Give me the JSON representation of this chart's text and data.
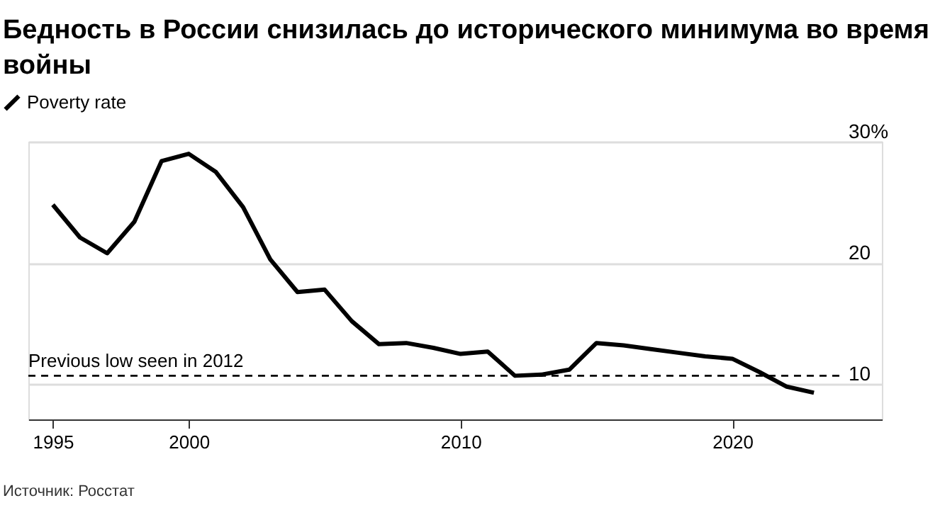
{
  "chart_data": {
    "type": "line",
    "title": "Бедность в России снизилась до исторического минимума во время войны",
    "x": [
      1995,
      1996,
      1997,
      1998,
      1999,
      2000,
      2001,
      2002,
      2003,
      2004,
      2005,
      2006,
      2007,
      2008,
      2009,
      2010,
      2011,
      2012,
      2013,
      2014,
      2015,
      2016,
      2017,
      2018,
      2019,
      2020,
      2021,
      2022,
      2023
    ],
    "series": [
      {
        "name": "Poverty rate",
        "color": "#000000",
        "values": [
          24.8,
          22.1,
          20.8,
          23.4,
          28.4,
          29.0,
          27.5,
          24.6,
          20.3,
          17.6,
          17.8,
          15.2,
          13.3,
          13.4,
          13.0,
          12.5,
          12.7,
          10.7,
          10.8,
          11.2,
          13.4,
          13.2,
          12.9,
          12.6,
          12.3,
          12.1,
          11.0,
          9.8,
          9.3
        ]
      }
    ],
    "xlim": [
      1994.1,
      2025.5
    ],
    "xticks": [
      1995,
      2000,
      2010,
      2020
    ],
    "ylim": [
      7.1,
      30
    ],
    "yticks": [
      {
        "value": 30,
        "label": "30%"
      },
      20,
      10
    ],
    "ref_lines": [
      {
        "axis": "y",
        "value": 10.7,
        "label": "Previous low seen in 2012",
        "color": "#000000",
        "line_style": "dashed"
      }
    ],
    "annotations": [
      "Источник: Росстат"
    ],
    "grid": "y",
    "legend": "top left",
    "marker": "none",
    "line_style": "solid"
  }
}
